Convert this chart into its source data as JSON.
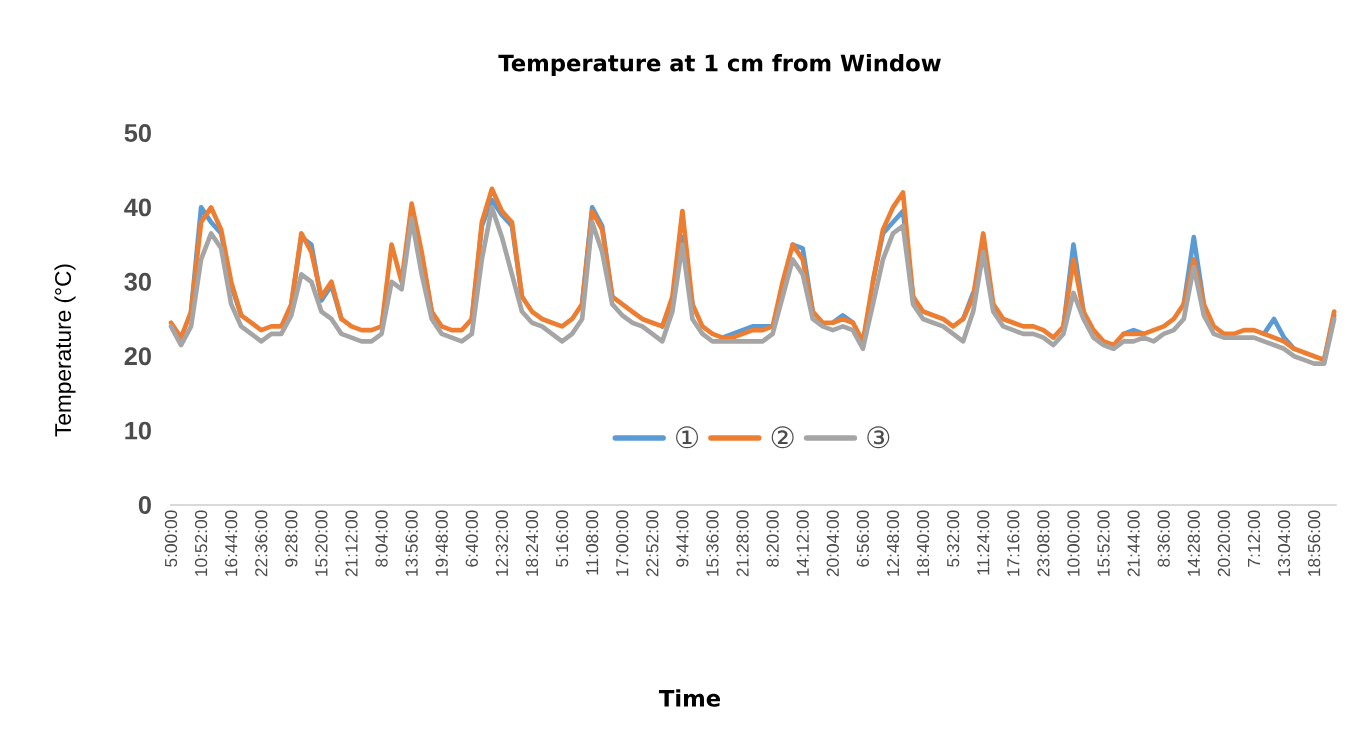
{
  "chart_data": {
    "type": "line",
    "title": "Temperature at 1 cm from Window",
    "xlabel": "Time",
    "ylabel": "Temperature (°C)",
    "categories": [
      "5:00:00",
      null,
      null,
      "10:52:00",
      null,
      null,
      "16:44:00",
      null,
      null,
      "22:36:00",
      null,
      null,
      "9:28:00",
      null,
      null,
      "15:20:00",
      null,
      null,
      "21:12:00",
      null,
      null,
      "8:04:00",
      null,
      null,
      "13:56:00",
      null,
      null,
      "19:48:00",
      null,
      null,
      "6:40:00",
      null,
      null,
      "12:32:00",
      null,
      null,
      "18:24:00",
      null,
      null,
      "5:16:00",
      null,
      null,
      "11:08:00",
      null,
      null,
      "17:00:00",
      null,
      null,
      "22:52:00",
      null,
      null,
      "9:44:00",
      null,
      null,
      "15:36:00",
      null,
      null,
      "21:28:00",
      null,
      null,
      "8:20:00",
      null,
      null,
      "14:12:00",
      null,
      null,
      "20:04:00",
      null,
      null,
      "6:56:00",
      null,
      null,
      "12:48:00",
      null,
      null,
      "18:40:00",
      null,
      null,
      "5:32:00",
      null,
      null,
      "11:24:00",
      null,
      null,
      "17:16:00",
      null,
      null,
      "23:08:00",
      null,
      null,
      "10:00:00",
      null,
      null,
      "15:52:00",
      null,
      null,
      "21:44:00",
      null,
      null,
      "8:36:00",
      null,
      null,
      "14:28:00",
      null,
      null,
      "20:20:00",
      null,
      null,
      "7:12:00",
      null,
      null,
      "13:04:00",
      null,
      null,
      "18:56:00",
      null,
      null
    ],
    "series": [
      {
        "name": "①",
        "color": "#5b9bd5",
        "values": [
          null,
          null,
          26,
          40,
          38,
          36.5,
          29.5,
          25.5,
          null,
          null,
          null,
          null,
          27,
          36,
          35,
          27.5,
          29.5,
          25,
          null,
          null,
          null,
          null,
          null,
          null,
          null,
          33.5,
          26,
          null,
          null,
          null,
          25,
          37.5,
          41,
          39,
          37.5,
          28,
          null,
          null,
          null,
          null,
          null,
          27,
          40,
          37.5,
          28,
          null,
          null,
          null,
          null,
          24,
          27.5,
          36,
          27,
          null,
          null,
          22.5,
          23,
          23.5,
          24,
          24,
          24,
          null,
          35,
          34.5,
          26,
          null,
          24.5,
          25.5,
          24.5,
          null,
          30,
          36.5,
          38,
          39.5,
          28,
          null,
          null,
          null,
          null,
          25,
          28.5,
          null,
          null,
          null,
          null,
          null,
          null,
          null,
          null,
          24,
          35,
          26,
          null,
          null,
          null,
          23,
          23.5,
          23,
          null,
          null,
          null,
          27,
          36,
          27,
          null,
          null,
          null,
          null,
          null,
          23,
          25,
          22.5,
          21,
          null,
          null,
          19.5,
          25.5
        ]
      },
      {
        "name": "②",
        "color": "#ed7d31",
        "values": [
          24.5,
          22.5,
          26,
          38,
          40,
          37,
          30,
          25.5,
          24.5,
          23.5,
          24,
          24,
          27,
          36.5,
          34,
          28,
          30,
          25,
          24,
          23.5,
          23.5,
          24,
          35,
          30,
          40.5,
          34,
          26,
          24,
          23.5,
          23.5,
          25,
          38,
          42.5,
          39.5,
          38,
          28,
          26,
          25,
          24.5,
          24,
          25,
          27,
          39.5,
          37,
          28,
          27,
          26,
          25,
          24.5,
          24,
          28,
          39.5,
          27,
          24,
          23,
          22.5,
          22.5,
          23,
          23.5,
          23.5,
          24,
          30,
          35,
          33,
          26,
          24.5,
          24.5,
          25,
          24.5,
          22,
          30,
          37,
          40,
          42,
          28,
          26,
          25.5,
          25,
          24,
          25,
          28,
          36.5,
          27,
          25,
          24.5,
          24,
          24,
          23.5,
          22.5,
          24,
          33,
          26,
          23.5,
          22,
          21.5,
          23,
          23,
          23,
          23.5,
          24,
          25,
          27,
          33,
          27,
          24,
          23,
          23,
          23.5,
          23.5,
          23,
          22.5,
          22,
          21,
          20.5,
          20,
          19.5,
          26
        ]
      },
      {
        "name": "③",
        "color": "#a5a5a5",
        "values": [
          24,
          21.5,
          24,
          33,
          36.5,
          34.5,
          27,
          24,
          23,
          22,
          23,
          23,
          25.5,
          31,
          30,
          26,
          25,
          23,
          22.5,
          22,
          22,
          23,
          30,
          29,
          38.5,
          31,
          25,
          23,
          22.5,
          22,
          23,
          33,
          40,
          36,
          31,
          26,
          24.5,
          24,
          23,
          22,
          23,
          25,
          38,
          34,
          27,
          25.5,
          24.5,
          24,
          23,
          22,
          26,
          35,
          25,
          23,
          22,
          22,
          22,
          22,
          22,
          22,
          23,
          28,
          33,
          31,
          25,
          24,
          23.5,
          24,
          23.5,
          21,
          27,
          33,
          36.5,
          37.5,
          27,
          25,
          24.5,
          24,
          23,
          22,
          26,
          34,
          26,
          24,
          23.5,
          23,
          23,
          22.5,
          21.5,
          23,
          28.5,
          25,
          22.5,
          21.5,
          21,
          22,
          22,
          22.5,
          22,
          23,
          23.5,
          25,
          32,
          25.5,
          23,
          22.5,
          22.5,
          22.5,
          22.5,
          22,
          21.5,
          21,
          20,
          19.5,
          19,
          19,
          25
        ]
      }
    ],
    "ylim": [
      0,
      50
    ],
    "yticks": [
      0,
      10,
      20,
      30,
      40,
      50
    ],
    "legend": "bottom"
  }
}
